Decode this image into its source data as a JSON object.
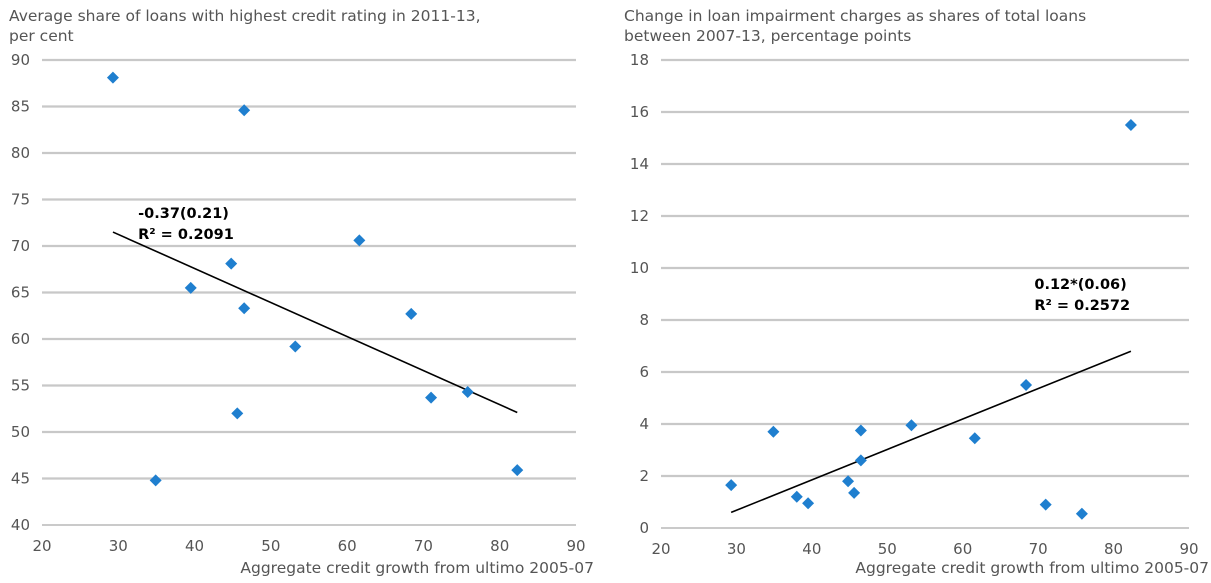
{
  "chart_data": [
    {
      "type": "scatter",
      "title": "Average share of loans with highest credit rating in 2011-13,\nper cent",
      "xlabel": "Aggregate credit growth from ultimo 2005-07",
      "ylabel": "",
      "xlim": [
        20,
        90
      ],
      "ylim": [
        40,
        90
      ],
      "xticks": [
        20,
        30,
        40,
        50,
        60,
        70,
        80,
        90
      ],
      "yticks": [
        40,
        45,
        50,
        55,
        60,
        65,
        70,
        75,
        80,
        85,
        90
      ],
      "grid": "horizontal",
      "marker_color": "#1f7fcf",
      "points": [
        {
          "x": 29.3,
          "y": 88.1
        },
        {
          "x": 46.5,
          "y": 84.6
        },
        {
          "x": 61.6,
          "y": 70.6
        },
        {
          "x": 44.8,
          "y": 68.1
        },
        {
          "x": 39.5,
          "y": 65.5
        },
        {
          "x": 46.5,
          "y": 63.3
        },
        {
          "x": 68.4,
          "y": 62.7
        },
        {
          "x": 53.2,
          "y": 59.2
        },
        {
          "x": 75.8,
          "y": 54.3
        },
        {
          "x": 71.0,
          "y": 53.7
        },
        {
          "x": 45.6,
          "y": 52.0
        },
        {
          "x": 82.3,
          "y": 45.9
        },
        {
          "x": 34.9,
          "y": 44.8
        }
      ],
      "trendline": {
        "x": [
          29.3,
          82.3
        ],
        "y": [
          71.5,
          52.1
        ]
      },
      "annotation": {
        "line1": "-0.37(0.21)",
        "line2": "R² = 0.2091",
        "anchor": {
          "x": 32.6,
          "y": 73.0
        }
      }
    },
    {
      "type": "scatter",
      "title": "Change in loan impairment charges as shares of total loans\nbetween 2007-13, percentage points",
      "xlabel": "Aggregate credit growth from ultimo 2005-07",
      "ylabel": "",
      "xlim": [
        20,
        90
      ],
      "ylim": [
        0,
        18
      ],
      "xticks": [
        20,
        30,
        40,
        50,
        60,
        70,
        80,
        90
      ],
      "yticks": [
        0,
        2,
        4,
        6,
        8,
        10,
        12,
        14,
        16,
        18
      ],
      "grid": "horizontal",
      "marker_color": "#1f7fcf",
      "points": [
        {
          "x": 82.3,
          "y": 15.5
        },
        {
          "x": 68.4,
          "y": 5.5
        },
        {
          "x": 53.2,
          "y": 3.95
        },
        {
          "x": 46.5,
          "y": 3.75
        },
        {
          "x": 34.9,
          "y": 3.7
        },
        {
          "x": 61.6,
          "y": 3.45
        },
        {
          "x": 46.5,
          "y": 2.6
        },
        {
          "x": 44.8,
          "y": 1.8
        },
        {
          "x": 29.3,
          "y": 1.65
        },
        {
          "x": 45.6,
          "y": 1.35
        },
        {
          "x": 38.0,
          "y": 1.2
        },
        {
          "x": 39.5,
          "y": 0.95
        },
        {
          "x": 71.0,
          "y": 0.9
        },
        {
          "x": 75.8,
          "y": 0.55
        }
      ],
      "trendline": {
        "x": [
          29.3,
          82.3
        ],
        "y": [
          0.6,
          6.8
        ]
      },
      "annotation": {
        "line1": "0.12*(0.06)",
        "line2": "R² = 0.2572",
        "anchor": {
          "x": 69.5,
          "y": 9.2
        }
      }
    }
  ]
}
